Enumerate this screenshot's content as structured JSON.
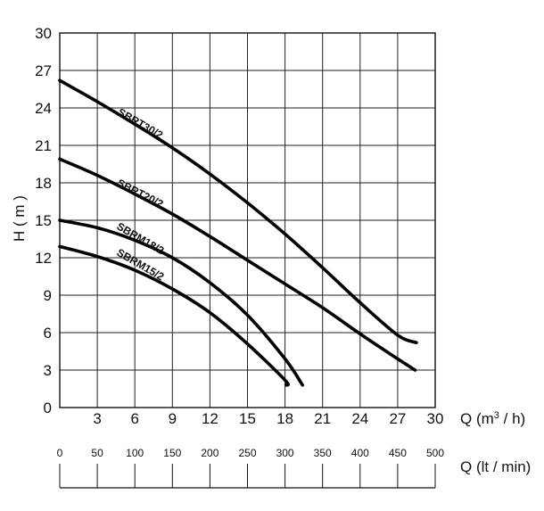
{
  "chart_data": {
    "type": "line",
    "title": "",
    "xlabel": "Q (m³ / h)",
    "xlabel_base": "Q (m",
    "xlabel_sup": "3",
    "xlabel_tail": " / h)",
    "x2label": "Q (lt / min)",
    "ylabel": "H ( m )",
    "xlim": [
      0,
      30
    ],
    "ylim": [
      0,
      30
    ],
    "grid": true,
    "x_ticks": [
      "3",
      "6",
      "9",
      "12",
      "15",
      "18",
      "21",
      "24",
      "27",
      "30"
    ],
    "y_ticks": [
      "0",
      "3",
      "6",
      "9",
      "12",
      "15",
      "18",
      "21",
      "24",
      "27",
      "30"
    ],
    "x2_ticks": [
      {
        "label": "0",
        "q": 0
      },
      {
        "label": "50",
        "q": 3
      },
      {
        "label": "100",
        "q": 6
      },
      {
        "label": "150",
        "q": 9
      },
      {
        "label": "200",
        "q": 12
      },
      {
        "label": "250",
        "q": 15
      },
      {
        "label": "300",
        "q": 18
      },
      {
        "label": "350",
        "q": 21
      },
      {
        "label": "400",
        "q": 24
      },
      {
        "label": "450",
        "q": 27
      },
      {
        "label": "500",
        "q": 30
      }
    ],
    "series": [
      {
        "name": "SBRT30/2",
        "label_at": [
          6.3,
          22.5
        ],
        "label_angle": 30,
        "points": [
          [
            0,
            26.2
          ],
          [
            3,
            24.5
          ],
          [
            6,
            22.7
          ],
          [
            9,
            20.8
          ],
          [
            12,
            18.7
          ],
          [
            15,
            16.4
          ],
          [
            18,
            13.9
          ],
          [
            21,
            11.2
          ],
          [
            24,
            8.4
          ],
          [
            27,
            5.8
          ],
          [
            28.5,
            5.2
          ]
        ]
      },
      {
        "name": "SBRT20/2",
        "label_at": [
          6.3,
          16.9
        ],
        "label_angle": 27,
        "points": [
          [
            0,
            19.9
          ],
          [
            3,
            18.6
          ],
          [
            6,
            17.1
          ],
          [
            9,
            15.5
          ],
          [
            12,
            13.7
          ],
          [
            15,
            11.8
          ],
          [
            18,
            9.9
          ],
          [
            21,
            8.0
          ],
          [
            24,
            5.9
          ],
          [
            27,
            3.9
          ],
          [
            28.4,
            3.0
          ]
        ]
      },
      {
        "name": "SBRM18/2",
        "label_at": [
          6.3,
          13.3
        ],
        "label_angle": 30,
        "points": [
          [
            0,
            15.0
          ],
          [
            3,
            14.4
          ],
          [
            6,
            13.4
          ],
          [
            9,
            12.0
          ],
          [
            12,
            10.0
          ],
          [
            15,
            7.4
          ],
          [
            18,
            3.9
          ],
          [
            19.4,
            1.8
          ]
        ]
      },
      {
        "name": "SBRM15/2",
        "label_at": [
          6.3,
          11.2
        ],
        "label_angle": 30,
        "points": [
          [
            0,
            12.9
          ],
          [
            3,
            12.1
          ],
          [
            6,
            11.0
          ],
          [
            9,
            9.5
          ],
          [
            12,
            7.6
          ],
          [
            15,
            5.1
          ],
          [
            18,
            2.2
          ],
          [
            18.1,
            1.8
          ]
        ]
      }
    ]
  }
}
